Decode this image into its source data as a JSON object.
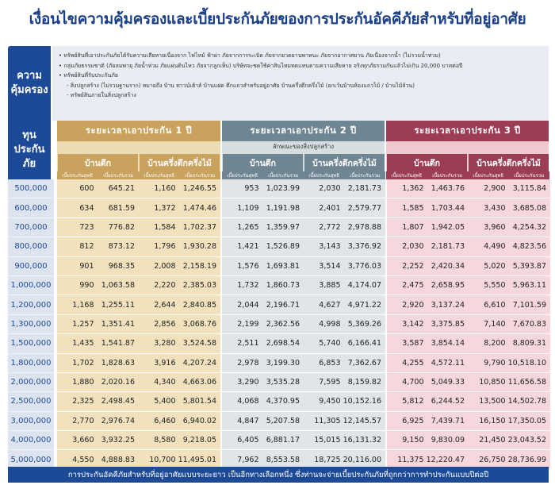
{
  "title": "เงื่อนไขความคุ้มครองและเบี้ยประกันภัยของการประกันอัคคีภัยสำหรับที่อยู่อาศัย",
  "coverage": {
    "label_line1": "ความ",
    "label_line2": "คุ้มครอง",
    "lines": [
      "• ทรัพย์สินที่เอาประกันภัยได้รับความเสียหายเนื่องจาก ไฟไหม้ ฟ้าผ่า ภัยจากการระเบิด ภัยจากยวดยานพาหนะ ภัยจากอากาศยาน ภัยเนื่องจากน้ำ (ไม่รวมน้ำท่วม)",
      "• กลุ่มภัยธรรมชาติ (ภัยลมพายุ ภัยน้ำท่วม ภัยแผ่นดินไหว ภัยจากลูกเห็บ) บริษัทจะชดใช้ค่าสินไหมทดแทนตามความเสียหาย จริงทุกภัยรวมกันแล้วไม่เกิน 20,000 บาทต่อปี",
      "• ทรัพย์สินที่รับประกันภัย",
      "- สิ่งปลูกสร้าง (ไม่รวมฐานราก) หมายถึง บ้าน ทาวน์เฮ้าส์ บ้านแฝด ตึกแถวสำหรับอยู่อาศัย บ้านครึ่งตึกครึ่งไม้ (ยกเว้นบ้านห้องแถวไม้ / บ้านไม้ล้วน)",
      "- ทรัพย์สินภายในสิ่งปลูกสร้าง"
    ]
  },
  "sum_label_line1": "ทุน",
  "sum_label_line2": "ประกันภัย",
  "periods": [
    {
      "label": "ระยะเวลาเอาประกัน 1 ปี"
    },
    {
      "label": "ระยะเวลาเอาประกัน 2 ปี"
    },
    {
      "label": "ระยะเวลาเอาประกัน 3 ปี"
    }
  ],
  "building_type_label": "ลักษณะของสิ่งปลูกสร้าง",
  "building_types": [
    "บ้านตึก",
    "บ้านครึ่งตึกครึ่งไม้"
  ],
  "col_tags": [
    "เบี้ยประกันสุทธิ",
    "เบี้ยประกันรวม"
  ],
  "rows": [
    {
      "sum": "500,000",
      "v": [
        "600",
        "645.21",
        "1,160",
        "1,246.55",
        "953",
        "1,023.99",
        "2,030",
        "2,181.73",
        "1,362",
        "1,463.76",
        "2,900",
        "3,115.84"
      ]
    },
    {
      "sum": "600,000",
      "v": [
        "634",
        "681.59",
        "1,372",
        "1,474.46",
        "1,109",
        "1,191.98",
        "2,401",
        "2,579.77",
        "1,585",
        "1,703.44",
        "3,430",
        "3,685.08"
      ]
    },
    {
      "sum": "700,000",
      "v": [
        "723",
        "776.82",
        "1,584",
        "1,702.37",
        "1,265",
        "1,359.97",
        "2,772",
        "2,978.88",
        "1,807",
        "1,942.05",
        "3,960",
        "4,254.32"
      ]
    },
    {
      "sum": "800,000",
      "v": [
        "812",
        "873.12",
        "1,796",
        "1,930.28",
        "1,421",
        "1,526.89",
        "3,143",
        "3,376.92",
        "2,030",
        "2,181.73",
        "4,490",
        "4,823.56"
      ]
    },
    {
      "sum": "900,000",
      "v": [
        "901",
        "968.35",
        "2,008",
        "2,158.19",
        "1,576",
        "1,693.81",
        "3,514",
        "3,776.03",
        "2,252",
        "2,420.34",
        "5,020",
        "5,393.87"
      ]
    },
    {
      "sum": "1,000,000",
      "v": [
        "990",
        "1,063.58",
        "2,220",
        "2,385.03",
        "1,732",
        "1,860.73",
        "3,885",
        "4,174.07",
        "2,475",
        "2,658.95",
        "5,550",
        "5,963.11"
      ]
    },
    {
      "sum": "1,200,000",
      "v": [
        "1,168",
        "1,255.11",
        "2,644",
        "2,840.85",
        "2,044",
        "2,196.71",
        "4,627",
        "4,971.22",
        "2,920",
        "3,137.24",
        "6,610",
        "7,101.59"
      ]
    },
    {
      "sum": "1,300,000",
      "v": [
        "1,257",
        "1,351.41",
        "2,856",
        "3,068.76",
        "2,199",
        "2,362.56",
        "4,998",
        "5,369.26",
        "3,142",
        "3,375.85",
        "7,140",
        "7,670.83"
      ]
    },
    {
      "sum": "1,500,000",
      "v": [
        "1,435",
        "1,541.87",
        "3,280",
        "3,524.58",
        "2,511",
        "2,698.54",
        "5,740",
        "6,166.41",
        "3,587",
        "3,854.14",
        "8,200",
        "8,809.31"
      ]
    },
    {
      "sum": "1,800,000",
      "v": [
        "1,702",
        "1,828.63",
        "3,916",
        "4,207.24",
        "2,978",
        "3,199.30",
        "6,853",
        "7,362.67",
        "4,255",
        "4,572.11",
        "9,790",
        "10,518.10"
      ]
    },
    {
      "sum": "2,000,000",
      "v": [
        "1,880",
        "2,020.16",
        "4,340",
        "4,663.06",
        "3,290",
        "3,535.28",
        "7,595",
        "8,159.82",
        "4,700",
        "5,049.33",
        "10,850",
        "11,656.58"
      ]
    },
    {
      "sum": "2,500,000",
      "v": [
        "2,325",
        "2,498.45",
        "5,400",
        "5,801.54",
        "4,068",
        "4,370.95",
        "9,450",
        "10,152.16",
        "5,812",
        "6,244.52",
        "13,500",
        "14,502.78"
      ]
    },
    {
      "sum": "3,000,000",
      "v": [
        "2,770",
        "2,976.74",
        "6,460",
        "6,940.02",
        "4,847",
        "5,207.58",
        "11,305",
        "12,145.57",
        "6,925",
        "7,439.71",
        "16,150",
        "17,350.05"
      ]
    },
    {
      "sum": "4,000,000",
      "v": [
        "3,660",
        "3,932.25",
        "8,580",
        "9,218.05",
        "6,405",
        "6,881.17",
        "15,015",
        "16,131.32",
        "9,150",
        "9,830.09",
        "21,450",
        "23,043.52"
      ]
    },
    {
      "sum": "5,000,000",
      "v": [
        "4,550",
        "4,888.83",
        "10,700",
        "11,495.01",
        "7,962",
        "8,553.58",
        "18,725",
        "20,116.00",
        "11,375",
        "12,220.47",
        "26,750",
        "28,736.99"
      ]
    }
  ],
  "footer": "การประกันอัคคีภัยสำหรับที่อยู่อาศัยแบบระยะยาว เป็นอีกทางเลือกหนึ่ง ซึ่งท่านจะจ่ายเบี้ยประกันภัยที่ถูกกว่าการทำประกันแบบปีต่อปี",
  "colors": {
    "navy": "#1c4a97",
    "gold": "#c9a25e",
    "slate": "#6f8592",
    "maroon": "#9b3e55",
    "gold_light": "#f1e2bd",
    "slate_light": "#dfe5e8",
    "maroon_light": "#f6d7db"
  }
}
